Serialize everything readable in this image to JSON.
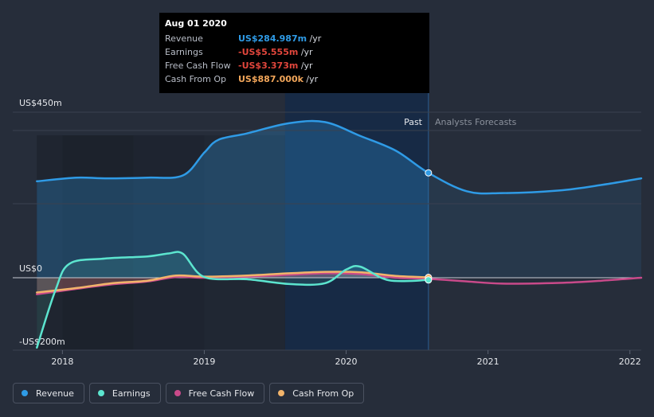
{
  "tooltip": {
    "date": "Aug 01 2020",
    "rows": [
      {
        "label": "Revenue",
        "value": "US$284.987m",
        "unit": "/yr",
        "color": "#2f9be6"
      },
      {
        "label": "Earnings",
        "value": "-US$5.555m",
        "unit": "/yr",
        "color": "#e2463c"
      },
      {
        "label": "Free Cash Flow",
        "value": "-US$3.373m",
        "unit": "/yr",
        "color": "#e2463c"
      },
      {
        "label": "Cash From Op",
        "value": "US$887.000k",
        "unit": "/yr",
        "color": "#f2a65a"
      }
    ]
  },
  "legend": [
    {
      "label": "Revenue",
      "color": "#2f9be6"
    },
    {
      "label": "Earnings",
      "color": "#5ce5cf"
    },
    {
      "label": "Free Cash Flow",
      "color": "#c94a8a"
    },
    {
      "label": "Cash From Op",
      "color": "#f2b46b"
    }
  ],
  "chart_data": {
    "type": "line",
    "y_tick_labels": [
      "US$450m",
      "US$0",
      "-US$200m"
    ],
    "x_tick_labels": [
      "2018",
      "2019",
      "2020",
      "2021",
      "2022"
    ],
    "past_label": "Past",
    "forecast_label": "Analysts Forecasts",
    "ylim": [
      -200,
      450
    ],
    "xlim": [
      2017.65,
      2022.08
    ],
    "past_end": 2020.58,
    "series": [
      {
        "name": "Revenue",
        "color": "#2f9be6",
        "points": [
          [
            2017.82,
            262
          ],
          [
            2018.1,
            272
          ],
          [
            2018.3,
            270
          ],
          [
            2018.6,
            272
          ],
          [
            2018.85,
            278
          ],
          [
            2019.0,
            340
          ],
          [
            2019.1,
            375
          ],
          [
            2019.3,
            392
          ],
          [
            2019.6,
            420
          ],
          [
            2019.85,
            423
          ],
          [
            2020.1,
            385
          ],
          [
            2020.35,
            345
          ],
          [
            2020.58,
            285
          ],
          [
            2020.85,
            235
          ],
          [
            2021.1,
            230
          ],
          [
            2021.5,
            237
          ],
          [
            2021.8,
            252
          ],
          [
            2022.08,
            270
          ]
        ]
      },
      {
        "name": "Earnings",
        "color": "#5ce5cf",
        "points": [
          [
            2017.82,
            -190
          ],
          [
            2017.95,
            -35
          ],
          [
            2018.05,
            38
          ],
          [
            2018.3,
            52
          ],
          [
            2018.6,
            58
          ],
          [
            2018.75,
            66
          ],
          [
            2018.85,
            65
          ],
          [
            2019.0,
            2
          ],
          [
            2019.3,
            -4
          ],
          [
            2019.6,
            -17
          ],
          [
            2019.85,
            -15
          ],
          [
            2020.0,
            22
          ],
          [
            2020.1,
            30
          ],
          [
            2020.3,
            -7
          ],
          [
            2020.58,
            -6
          ]
        ]
      },
      {
        "name": "Free Cash Flow",
        "color": "#c94a8a",
        "points": [
          [
            2017.82,
            -45
          ],
          [
            2018.1,
            -30
          ],
          [
            2018.35,
            -18
          ],
          [
            2018.6,
            -10
          ],
          [
            2018.8,
            2
          ],
          [
            2019.0,
            0
          ],
          [
            2019.3,
            3
          ],
          [
            2019.6,
            8
          ],
          [
            2019.85,
            12
          ],
          [
            2020.1,
            10
          ],
          [
            2020.35,
            0
          ],
          [
            2020.58,
            -3
          ],
          [
            2020.85,
            -10
          ],
          [
            2021.1,
            -16
          ],
          [
            2021.5,
            -14
          ],
          [
            2021.8,
            -8
          ],
          [
            2022.08,
            0
          ]
        ]
      },
      {
        "name": "Cash From Op",
        "color": "#f2b46b",
        "points": [
          [
            2017.82,
            -40
          ],
          [
            2018.1,
            -28
          ],
          [
            2018.35,
            -15
          ],
          [
            2018.6,
            -8
          ],
          [
            2018.8,
            6
          ],
          [
            2019.0,
            3
          ],
          [
            2019.3,
            6
          ],
          [
            2019.6,
            12
          ],
          [
            2019.85,
            16
          ],
          [
            2020.1,
            15
          ],
          [
            2020.35,
            5
          ],
          [
            2020.58,
            1
          ]
        ]
      }
    ]
  }
}
